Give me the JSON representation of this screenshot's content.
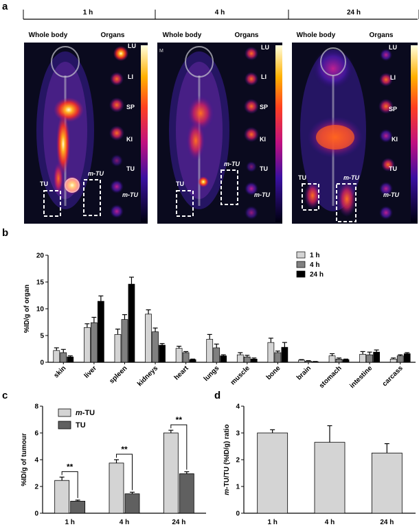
{
  "panel_labels": {
    "a": "a",
    "b": "b",
    "c": "c",
    "d": "d"
  },
  "panel_a": {
    "groups": [
      {
        "time": "1 h",
        "whole_body": "Whole body",
        "organs": "Organs",
        "organ_labels": [
          "LU",
          "LI",
          "SP",
          "KI",
          "TU",
          "m-TU"
        ],
        "box_labels": [
          "TU",
          "m-TU"
        ]
      },
      {
        "time": "4 h",
        "whole_body": "Whole body",
        "organs": "Organs",
        "organ_labels": [
          "LU",
          "LI",
          "SP",
          "KI",
          "TU",
          "m-TU"
        ],
        "box_labels": [
          "TU",
          "m-TU"
        ],
        "corner_mark": "M"
      },
      {
        "time": "24 h",
        "whole_body": "Whole body",
        "organs": "Organs",
        "organ_labels": [
          "LU",
          "LI",
          "SP",
          "KI",
          "TU",
          "m-TU"
        ],
        "box_labels": [
          "TU",
          "m-TU"
        ]
      }
    ],
    "colors": {
      "background": "#0a0a1e",
      "hot": "#ff5a1a",
      "mid": "#c0208a",
      "cool": "#3a1aa0",
      "bone": "#c8c8d0"
    }
  },
  "chart_data": [
    {
      "panel": "b",
      "type": "bar",
      "ylabel": "%ID/g of organ",
      "ylim": [
        0,
        20
      ],
      "yticks": [
        0,
        5,
        10,
        15,
        20
      ],
      "categories": [
        "skin",
        "liver",
        "spleen",
        "kidneys",
        "heart",
        "lungs",
        "muscle",
        "bone",
        "brain",
        "stomach",
        "intestine",
        "carcass"
      ],
      "series": [
        {
          "name": "1 h",
          "color": "#d4d4d4",
          "values": [
            2.2,
            6.5,
            5.2,
            9.0,
            2.6,
            4.3,
            1.4,
            3.7,
            0.4,
            1.2,
            1.5,
            0.6
          ],
          "errors": [
            0.5,
            0.7,
            1.0,
            0.8,
            0.4,
            0.9,
            0.4,
            0.8,
            0.1,
            0.4,
            0.5,
            0.2
          ]
        },
        {
          "name": "4 h",
          "color": "#808080",
          "values": [
            1.8,
            7.4,
            8.0,
            5.7,
            1.8,
            2.7,
            1.0,
            1.8,
            0.2,
            0.6,
            1.4,
            1.2
          ],
          "errors": [
            0.6,
            1.0,
            0.9,
            0.7,
            0.2,
            0.7,
            0.3,
            0.3,
            0.1,
            0.2,
            0.5,
            0.2
          ]
        },
        {
          "name": "24 h",
          "color": "#000000",
          "values": [
            1.0,
            11.4,
            14.6,
            3.2,
            0.5,
            1.2,
            0.6,
            2.8,
            0.1,
            0.5,
            1.9,
            1.6
          ],
          "errors": [
            0.2,
            1.0,
            1.3,
            0.3,
            0.1,
            0.2,
            0.2,
            0.9,
            0.05,
            0.1,
            0.4,
            0.2
          ]
        }
      ],
      "legend": "top-right"
    },
    {
      "panel": "c",
      "type": "bar",
      "ylabel": "%ID/g of tumour",
      "ylim": [
        0,
        8
      ],
      "yticks": [
        0,
        2,
        4,
        6,
        8
      ],
      "categories": [
        "1 h",
        "4 h",
        "24 h"
      ],
      "series": [
        {
          "name": "m-TU",
          "color": "#d4d4d4",
          "values": [
            2.45,
            3.75,
            6.0
          ],
          "errors": [
            0.25,
            0.25,
            0.2
          ]
        },
        {
          "name": "TU",
          "color": "#606060",
          "values": [
            0.9,
            1.45,
            2.95
          ],
          "errors": [
            0.08,
            0.12,
            0.15
          ]
        }
      ],
      "significance": [
        "**",
        "**",
        "**"
      ],
      "legend": "top-left"
    },
    {
      "panel": "d",
      "type": "bar",
      "ylabel": "m-TU/TU (%ID/g) ratio",
      "ylim": [
        0,
        4
      ],
      "yticks": [
        0,
        1,
        2,
        3,
        4
      ],
      "categories": [
        "1 h",
        "4 h",
        "24 h"
      ],
      "series": [
        {
          "name": "ratio",
          "color": "#d4d4d4",
          "values": [
            3.0,
            2.65,
            2.25
          ],
          "errors": [
            0.12,
            0.62,
            0.35
          ]
        }
      ]
    }
  ]
}
